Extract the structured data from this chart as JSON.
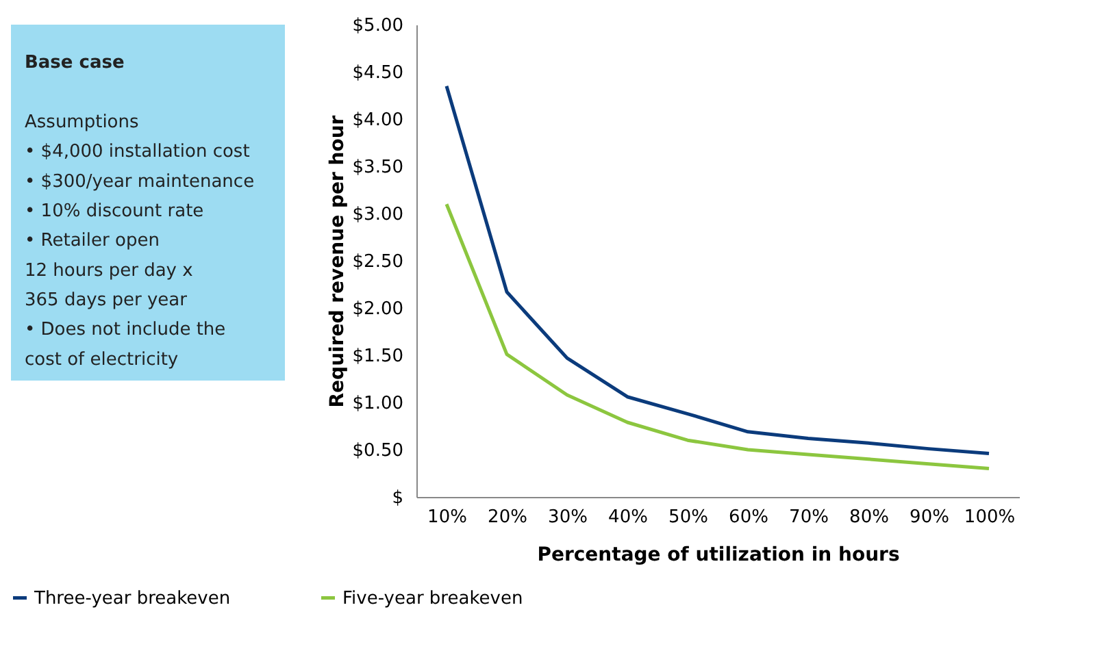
{
  "chart_data": {
    "type": "line",
    "xlabel": "Percentage of utilization in hours",
    "ylabel": "Required revenue per hour",
    "categories": [
      "10%",
      "20%",
      "30%",
      "40%",
      "50%",
      "60%",
      "70%",
      "80%",
      "90%",
      "100%"
    ],
    "series": [
      {
        "name": "Three-year breakeven",
        "color": "#0b3b7c",
        "values": [
          4.35,
          2.17,
          1.47,
          1.06,
          0.88,
          0.69,
          0.62,
          0.57,
          0.51,
          0.46
        ]
      },
      {
        "name": "Five-year breakeven",
        "color": "#8cc63f",
        "values": [
          3.1,
          1.51,
          1.08,
          0.79,
          0.6,
          0.5,
          0.45,
          0.4,
          0.35,
          0.3
        ]
      }
    ],
    "ylim": [
      0,
      5
    ],
    "yticks": [
      {
        "value": 0,
        "label": "$"
      },
      {
        "value": 0.5,
        "label": "$0.50"
      },
      {
        "value": 1,
        "label": "$1.00"
      },
      {
        "value": 1.5,
        "label": "$1.50"
      },
      {
        "value": 2,
        "label": "$2.00"
      },
      {
        "value": 2.5,
        "label": "$2.50"
      },
      {
        "value": 3,
        "label": "$3.00"
      },
      {
        "value": 3.5,
        "label": "$3.50"
      },
      {
        "value": 4,
        "label": "$4.00"
      },
      {
        "value": 4.5,
        "label": "$4.50"
      },
      {
        "value": 5,
        "label": "$5.00"
      }
    ],
    "grid": false,
    "legend": "bottom",
    "marker": "none",
    "line_style": "solid",
    "annotations": [
      "Base case",
      "Assumptions",
      "• $4,000 installation cost",
      "• $300/year maintenance",
      "• 10% discount rate",
      "• Retailer open",
      "   12 hours per day x",
      "   365 days per year",
      "• Does not include the",
      "   cost of electricity"
    ]
  }
}
